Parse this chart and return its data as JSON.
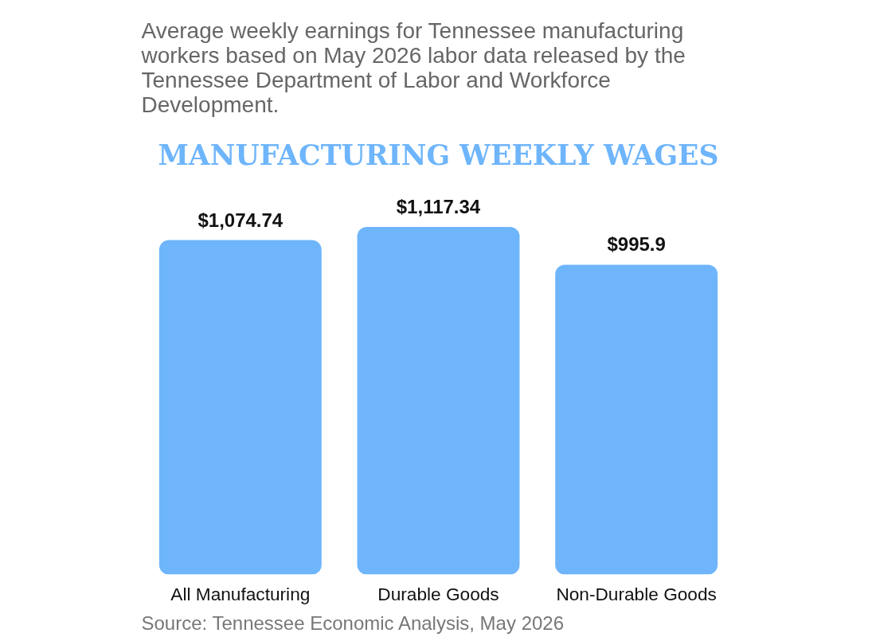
{
  "chart_data": {
    "type": "bar",
    "title": "MANUFACTURING WEEKLY WAGES",
    "subtitle": "Average weekly earnings for Tennessee manufacturing workers based on May 2026 labor data released by the Tennessee Department of Labor and Workforce Development.",
    "categories": [
      "All Manufacturing",
      "Durable Goods",
      "Non-Durable Goods"
    ],
    "values": [
      1074.74,
      1117.34,
      995.9
    ],
    "value_labels": [
      "$1,074.74",
      "$1,117.34",
      "$995.9"
    ],
    "color": "#6eb5fb",
    "tick_labels": "x",
    "annotations": [
      "Source: Tennessee Economic Analysis, May 2026"
    ]
  }
}
